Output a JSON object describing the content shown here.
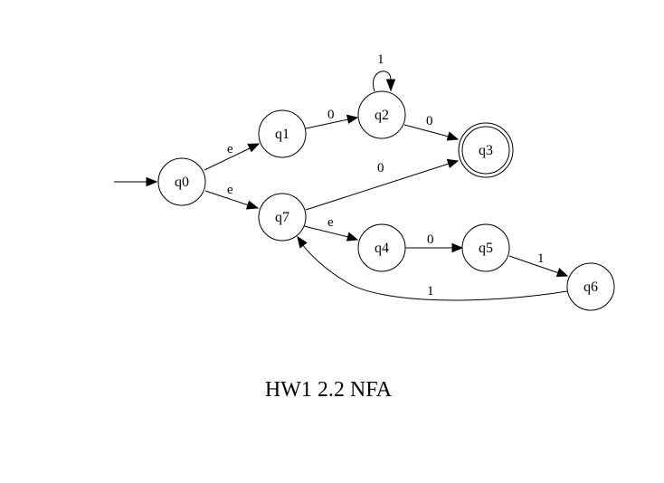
{
  "diagram": {
    "caption": "HW1 2.2 NFA",
    "start_state": "q0",
    "accepting_states": [
      "q3"
    ],
    "states": [
      {
        "id": "q0",
        "label": "q0"
      },
      {
        "id": "q1",
        "label": "q1"
      },
      {
        "id": "q2",
        "label": "q2"
      },
      {
        "id": "q3",
        "label": "q3"
      },
      {
        "id": "q7",
        "label": "q7"
      },
      {
        "id": "q4",
        "label": "q4"
      },
      {
        "id": "q5",
        "label": "q5"
      },
      {
        "id": "q6",
        "label": "q6"
      }
    ],
    "transitions": [
      {
        "from": "q0",
        "to": "q1",
        "label": "e"
      },
      {
        "from": "q0",
        "to": "q7",
        "label": "e"
      },
      {
        "from": "q1",
        "to": "q2",
        "label": "0"
      },
      {
        "from": "q2",
        "to": "q2",
        "label": "1"
      },
      {
        "from": "q2",
        "to": "q3",
        "label": "0"
      },
      {
        "from": "q7",
        "to": "q3",
        "label": "0"
      },
      {
        "from": "q7",
        "to": "q4",
        "label": "e"
      },
      {
        "from": "q4",
        "to": "q5",
        "label": "0"
      },
      {
        "from": "q5",
        "to": "q6",
        "label": "1"
      },
      {
        "from": "q6",
        "to": "q7",
        "label": "1"
      }
    ]
  }
}
